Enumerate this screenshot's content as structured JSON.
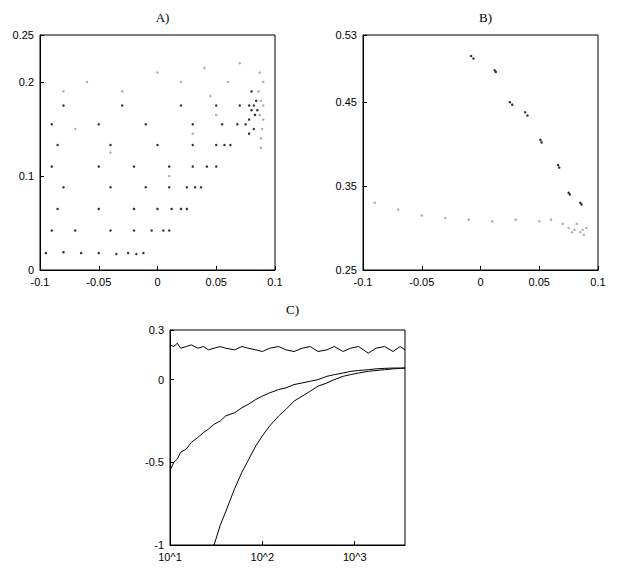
{
  "chart_data": [
    {
      "type": "scatter",
      "title": "A)",
      "xlim": [
        -0.1,
        0.1
      ],
      "xticks": [
        -0.1,
        -0.05,
        0,
        0.05,
        0.1
      ],
      "ylim": [
        0,
        0.25
      ],
      "yticks": [
        0,
        0.1,
        0.2,
        0.25
      ],
      "grid": false,
      "series": [
        {
          "color": "#000000",
          "marker": "dot",
          "x": [
            -0.095,
            -0.08,
            -0.065,
            -0.05,
            -0.035,
            -0.025,
            -0.018,
            -0.012,
            -0.09,
            -0.07,
            -0.04,
            -0.02,
            -0.005,
            0.005,
            0.01,
            -0.085,
            -0.05,
            -0.02,
            0,
            0.012,
            0.02,
            0.025,
            -0.08,
            -0.04,
            -0.01,
            0.01,
            0.025,
            0.032,
            0.037,
            -0.09,
            -0.05,
            -0.02,
            0.01,
            0.03,
            0.042,
            0.05,
            -0.085,
            -0.04,
            0,
            0.03,
            0.05,
            0.057,
            0.062,
            -0.09,
            -0.05,
            -0.01,
            0.03,
            0.055,
            0.068,
            0.075,
            -0.08,
            -0.03,
            0.02,
            0.05,
            0.07,
            0.078,
            0.082,
            0.078,
            0.08,
            0.082,
            0.084,
            0.08,
            0.083,
            0.085,
            0.078
          ],
          "values": [
            0.018,
            0.019,
            0.018,
            0.018,
            0.017,
            0.018,
            0.017,
            0.018,
            0.042,
            0.042,
            0.042,
            0.042,
            0.042,
            0.042,
            0.042,
            0.065,
            0.065,
            0.065,
            0.065,
            0.065,
            0.065,
            0.065,
            0.088,
            0.088,
            0.088,
            0.088,
            0.088,
            0.088,
            0.088,
            0.11,
            0.11,
            0.11,
            0.11,
            0.11,
            0.11,
            0.11,
            0.133,
            0.133,
            0.133,
            0.133,
            0.133,
            0.133,
            0.133,
            0.155,
            0.155,
            0.155,
            0.155,
            0.155,
            0.155,
            0.155,
            0.175,
            0.175,
            0.175,
            0.175,
            0.175,
            0.175,
            0.175,
            0.16,
            0.17,
            0.15,
            0.18,
            0.19,
            0.165,
            0.17,
            0.145
          ]
        },
        {
          "color": "#999999",
          "marker": "dot",
          "x": [
            0.088,
            0.09,
            0.088,
            0.09,
            0.087,
            0.089,
            0.086,
            0.09,
            0.088,
            0.087,
            -0.06,
            -0.03,
            0,
            0.02,
            0.04,
            0.06,
            0.07,
            -0.08,
            0.05,
            0.03,
            -0.04,
            0.01,
            -0.07,
            0.045
          ],
          "values": [
            0.14,
            0.16,
            0.18,
            0.2,
            0.21,
            0.15,
            0.19,
            0.175,
            0.13,
            0.165,
            0.2,
            0.19,
            0.21,
            0.2,
            0.215,
            0.2,
            0.22,
            0.19,
            0.165,
            0.145,
            0.125,
            0.1,
            0.15,
            0.185
          ]
        }
      ]
    },
    {
      "type": "scatter",
      "title": "B)",
      "xlim": [
        -0.1,
        0.1
      ],
      "xticks": [
        -0.1,
        -0.05,
        0,
        0.05,
        0.1
      ],
      "ylim": [
        0.25,
        0.53
      ],
      "yticks": [
        0.25,
        0.35,
        0.45,
        0.53
      ],
      "grid": false,
      "series": [
        {
          "color": "#000000",
          "marker": "dot",
          "x": [
            -0.008,
            -0.006,
            0.012,
            0.013,
            0.025,
            0.027,
            0.038,
            0.04,
            0.051,
            0.052,
            0.066,
            0.067,
            0.075,
            0.076,
            0.085,
            0.086
          ],
          "values": [
            0.505,
            0.502,
            0.488,
            0.486,
            0.45,
            0.447,
            0.438,
            0.434,
            0.405,
            0.402,
            0.375,
            0.372,
            0.342,
            0.34,
            0.33,
            0.328
          ]
        },
        {
          "color": "#999999",
          "marker": "dot",
          "x": [
            -0.09,
            -0.07,
            -0.05,
            -0.03,
            -0.01,
            0.01,
            0.03,
            0.05,
            0.06,
            0.07,
            0.075,
            0.08,
            0.082,
            0.085,
            0.087,
            0.088,
            0.09,
            0.078
          ],
          "values": [
            0.33,
            0.322,
            0.315,
            0.312,
            0.31,
            0.308,
            0.31,
            0.308,
            0.31,
            0.305,
            0.3,
            0.298,
            0.305,
            0.295,
            0.298,
            0.292,
            0.3,
            0.295
          ]
        }
      ]
    },
    {
      "type": "line",
      "title": "C)",
      "log": "x",
      "xlim": [
        10,
        3500
      ],
      "xticks": [
        {
          "value": 10,
          "label": "10^1"
        },
        {
          "value": 100,
          "label": "10^2"
        },
        {
          "value": 1000,
          "label": "10^3"
        }
      ],
      "ylim": [
        -1,
        0.3
      ],
      "yticks": [
        -1,
        -0.5,
        0,
        0.3
      ],
      "grid": false,
      "series": [
        {
          "color": "#000000",
          "line_style": "solid",
          "x": [
            10,
            11,
            12,
            13,
            15,
            17,
            20,
            23,
            26,
            30,
            35,
            40,
            50,
            60,
            70,
            85,
            100,
            120,
            150,
            180,
            220,
            270,
            330,
            400,
            500,
            600,
            750,
            900,
            1100,
            1400,
            1700,
            2100,
            2600,
            3100,
            3500
          ],
          "values": [
            0.21,
            0.2,
            0.22,
            0.19,
            0.2,
            0.21,
            0.19,
            0.2,
            0.18,
            0.19,
            0.2,
            0.19,
            0.18,
            0.2,
            0.19,
            0.18,
            0.17,
            0.19,
            0.2,
            0.18,
            0.17,
            0.19,
            0.2,
            0.17,
            0.18,
            0.2,
            0.17,
            0.19,
            0.2,
            0.16,
            0.19,
            0.2,
            0.17,
            0.2,
            0.18
          ]
        },
        {
          "color": "#000000",
          "line_style": "solid",
          "x": [
            10,
            11,
            12,
            13,
            15,
            17,
            20,
            23,
            26,
            30,
            35,
            40,
            50,
            60,
            70,
            85,
            100,
            120,
            150,
            180,
            220,
            270,
            330,
            400,
            500,
            600,
            750,
            900,
            1100,
            1400,
            1700,
            2100,
            2600,
            3100,
            3500
          ],
          "values": [
            -0.55,
            -0.5,
            -0.48,
            -0.44,
            -0.42,
            -0.38,
            -0.35,
            -0.32,
            -0.3,
            -0.27,
            -0.25,
            -0.22,
            -0.2,
            -0.17,
            -0.15,
            -0.12,
            -0.1,
            -0.08,
            -0.06,
            -0.05,
            -0.03,
            -0.02,
            -0.01,
            0,
            0.02,
            0.03,
            0.04,
            0.05,
            0.055,
            0.06,
            0.065,
            0.068,
            0.07,
            0.07,
            0.07
          ]
        },
        {
          "color": "#000000",
          "line_style": "solid",
          "x": [
            30,
            35,
            40,
            50,
            60,
            70,
            85,
            100,
            120,
            150,
            180,
            220,
            270,
            330,
            400,
            500,
            600,
            750,
            900,
            1100,
            1400,
            1700,
            2100,
            2600,
            3100,
            3500
          ],
          "values": [
            -1,
            -0.88,
            -0.8,
            -0.66,
            -0.56,
            -0.49,
            -0.4,
            -0.34,
            -0.28,
            -0.22,
            -0.18,
            -0.13,
            -0.1,
            -0.07,
            -0.04,
            -0.02,
            0,
            0.02,
            0.03,
            0.04,
            0.05,
            0.055,
            0.06,
            0.065,
            0.068,
            0.07
          ]
        }
      ]
    }
  ]
}
